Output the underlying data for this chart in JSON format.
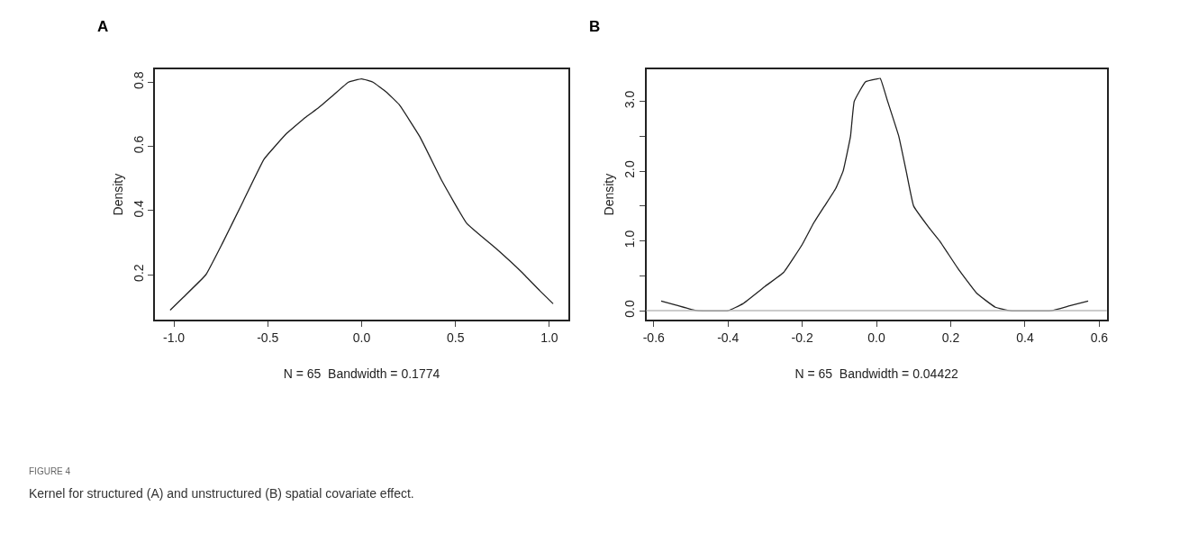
{
  "chart_data": [
    {
      "type": "line",
      "title": "A",
      "xlabel": "N = 65  Bandwidth = 0.1774",
      "ylabel": "Density",
      "x": [
        -1.02,
        -0.95,
        -0.83,
        -0.74,
        -0.63,
        -0.52,
        -0.4,
        -0.3,
        -0.23,
        -0.15,
        -0.07,
        0.0,
        0.06,
        0.13,
        0.2,
        0.31,
        0.43,
        0.56,
        0.72,
        0.85,
        0.95,
        1.02
      ],
      "series": [
        {
          "color": "#222222",
          "values": [
            0.09,
            0.13,
            0.2,
            0.3,
            0.43,
            0.56,
            0.64,
            0.69,
            0.72,
            0.76,
            0.8,
            0.81,
            0.8,
            0.77,
            0.73,
            0.63,
            0.49,
            0.36,
            0.28,
            0.21,
            0.15,
            0.11
          ]
        }
      ],
      "xlim": [
        -1.1,
        1.1
      ],
      "ylim": [
        0.06,
        0.84
      ],
      "xticks": [
        {
          "value": -1,
          "label": "-1.0"
        },
        {
          "value": -0.5,
          "label": "-0.5"
        },
        {
          "value": 0,
          "label": "0.0"
        },
        {
          "value": 0.5,
          "label": "0.5"
        },
        {
          "value": 1,
          "label": "1.0"
        }
      ],
      "yticks": [
        0.2,
        0.4,
        0.6,
        0.8
      ],
      "marker": "none",
      "line_style": "solid",
      "annotations": [
        "FIGURE 4",
        "Kernel for structured (A) and unstructured (B) spatial covariate effect."
      ]
    },
    {
      "type": "line",
      "title": "B",
      "xlabel": "N = 65  Bandwidth = 0.04422",
      "ylabel": "Density",
      "x": [
        -0.58,
        -0.54,
        -0.5,
        -0.48,
        -0.4,
        -0.36,
        -0.3,
        -0.25,
        -0.2,
        -0.17,
        -0.14,
        -0.11,
        -0.09,
        -0.07,
        -0.06,
        -0.03,
        0.0,
        0.01,
        0.03,
        0.06,
        0.08,
        0.1,
        0.14,
        0.17,
        0.22,
        0.27,
        0.32,
        0.36,
        0.47,
        0.52,
        0.57
      ],
      "series": [
        {
          "color": "#222222",
          "values": [
            0.14,
            0.08,
            0.02,
            0.0,
            0.0,
            0.1,
            0.35,
            0.55,
            0.95,
            1.25,
            1.5,
            1.75,
            2.0,
            2.5,
            3.0,
            3.28,
            3.32,
            3.33,
            3.0,
            2.5,
            2.0,
            1.5,
            1.2,
            1.0,
            0.6,
            0.25,
            0.05,
            0.0,
            0.0,
            0.07,
            0.14
          ]
        }
      ],
      "xlim": [
        -0.62,
        0.62
      ],
      "ylim": [
        -0.13,
        3.46
      ],
      "xticks": [
        {
          "value": -0.6,
          "label": "-0.6"
        },
        {
          "value": -0.4,
          "label": "-0.4"
        },
        {
          "value": -0.2,
          "label": "-0.2"
        },
        {
          "value": 0,
          "label": "0.0"
        },
        {
          "value": 0.2,
          "label": "0.2"
        },
        {
          "value": 0.4,
          "label": "0.4"
        },
        {
          "value": 0.6,
          "label": "0.6"
        }
      ],
      "yticks": [
        {
          "value": 0,
          "label": "0.0"
        },
        {
          "value": 0.5,
          "label": null
        },
        {
          "value": 1,
          "label": "1.0"
        },
        {
          "value": 1.5,
          "label": null
        },
        {
          "value": 2,
          "label": "2.0"
        },
        {
          "value": 2.5,
          "label": null
        },
        {
          "value": 3,
          "label": "3.0"
        }
      ],
      "ref_lines": [
        {
          "axis": "y",
          "value": 0,
          "color": "#bbbbbb"
        }
      ],
      "marker": "none",
      "line_style": "solid"
    }
  ]
}
